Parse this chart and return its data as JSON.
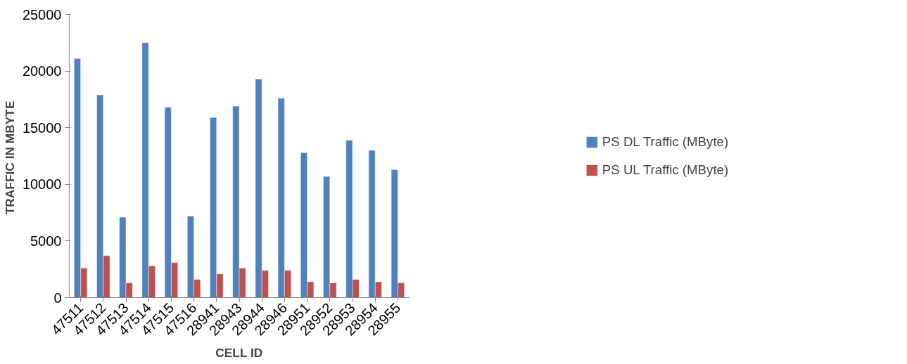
{
  "chart_data": {
    "type": "bar",
    "xlabel": "CELL ID",
    "ylabel": "TRAFFIC  IN MBYTE",
    "categories": [
      "47511",
      "47512",
      "47513",
      "47514",
      "47515",
      "47516",
      "28941",
      "28943",
      "28944",
      "28946",
      "28951",
      "28952",
      "28953",
      "28954",
      "28955"
    ],
    "series": [
      {
        "name": "PS DL Traffic (MByte)",
        "color": "#4f81bd",
        "values": [
          21100,
          17900,
          7100,
          22500,
          16800,
          7200,
          15900,
          16900,
          19300,
          17600,
          12800,
          10700,
          13900,
          13000,
          11300
        ]
      },
      {
        "name": "PS UL Traffic (MByte)",
        "color": "#c0504d",
        "values": [
          2600,
          3700,
          1300,
          2800,
          3100,
          1600,
          2100,
          2600,
          2400,
          2400,
          1400,
          1300,
          1600,
          1400,
          1300
        ]
      }
    ],
    "ylim": [
      0,
      25000
    ],
    "yticks": [
      0,
      5000,
      10000,
      15000,
      20000,
      25000
    ],
    "grid": false,
    "legend": "right"
  }
}
